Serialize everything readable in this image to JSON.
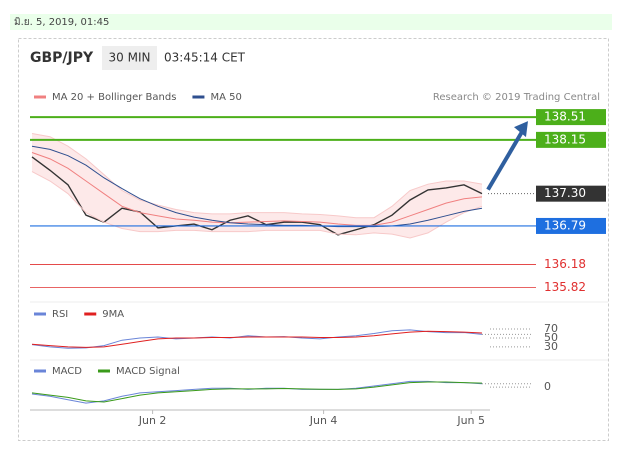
{
  "header": {
    "date": "มิ.ย. 5, 2019, 01:45",
    "pair": "GBP/JPY",
    "timeframe": "30 MIN",
    "time": "03:45:14 CET",
    "credit": "Research © 2019 Trading Central"
  },
  "chart_data": [
    {
      "type": "line",
      "xlim": [
        0,
        25
      ],
      "ylim": [
        135.62,
        138.78
      ],
      "series": [
        {
          "color": "#333333",
          "values": [
            137.88,
            137.67,
            137.44,
            136.96,
            136.85,
            137.07,
            137.01,
            136.76,
            136.79,
            136.82,
            136.73,
            136.88,
            136.95,
            136.81,
            136.85,
            136.85,
            136.81,
            136.65,
            136.73,
            136.81,
            136.96,
            137.2,
            137.36,
            137.39,
            137.44,
            137.3
          ]
        },
        {
          "name": "MA 20 + Bollinger Bands",
          "color": "#f08080",
          "values": [
            137.95,
            137.85,
            137.7,
            137.5,
            137.3,
            137.1,
            137.0,
            136.95,
            136.9,
            136.88,
            136.85,
            136.84,
            136.85,
            136.86,
            136.87,
            136.86,
            136.85,
            136.82,
            136.8,
            136.8,
            136.85,
            136.95,
            137.05,
            137.15,
            137.22,
            137.25
          ]
        },
        {
          "color": "#f7c9c9",
          "values": [
            138.25,
            138.2,
            138.05,
            137.85,
            137.6,
            137.35,
            137.2,
            137.12,
            137.05,
            137.0,
            136.98,
            136.98,
            137.0,
            137.0,
            137.0,
            136.98,
            136.97,
            136.95,
            136.92,
            136.92,
            137.1,
            137.35,
            137.45,
            137.5,
            137.5,
            137.45
          ]
        },
        {
          "color": "#f7c9c9",
          "values": [
            137.65,
            137.5,
            137.3,
            137.0,
            136.85,
            136.75,
            136.7,
            136.7,
            136.72,
            136.72,
            136.7,
            136.7,
            136.7,
            136.72,
            136.72,
            136.72,
            136.72,
            136.66,
            136.65,
            136.68,
            136.66,
            136.6,
            136.68,
            136.85,
            137.0,
            137.1
          ]
        },
        {
          "name": "MA 50",
          "color": "#2f4f8f",
          "values": [
            138.05,
            138.0,
            137.9,
            137.75,
            137.55,
            137.38,
            137.22,
            137.1,
            137.0,
            136.93,
            136.88,
            136.84,
            136.82,
            136.81,
            136.8,
            136.8,
            136.79,
            136.78,
            136.78,
            136.78,
            136.79,
            136.82,
            136.88,
            136.95,
            137.02,
            137.07
          ]
        }
      ],
      "levels": [
        {
          "value": 138.51,
          "color": "#4caf1a",
          "style": "box"
        },
        {
          "value": 138.15,
          "color": "#4caf1a",
          "style": "box"
        },
        {
          "value": 137.3,
          "label": "137.30",
          "color": "#333333",
          "style": "dotted"
        },
        {
          "value": 136.79,
          "color": "#1e6fe0",
          "style": "box"
        },
        {
          "value": 136.18,
          "color": "#e03030",
          "style": "text"
        },
        {
          "value": 135.82,
          "color": "#e03030",
          "style": "text"
        }
      ]
    },
    {
      "type": "line",
      "xlim": [
        0,
        25
      ],
      "ylim": [
        12,
        90
      ],
      "yticks": [
        70,
        50,
        30
      ],
      "series": [
        {
          "name": "RSI",
          "color": "#6a85d8",
          "values": [
            35,
            30,
            27,
            28,
            33,
            45,
            50,
            52,
            48,
            50,
            52,
            50,
            55,
            52,
            53,
            50,
            48,
            52,
            55,
            60,
            66,
            68,
            64,
            62,
            62,
            58
          ]
        },
        {
          "name": "9MA",
          "color": "#e02020",
          "values": [
            36,
            33,
            30,
            29,
            30,
            36,
            42,
            48,
            50,
            50,
            51,
            51,
            52,
            52,
            52,
            52,
            51,
            51,
            52,
            55,
            59,
            63,
            65,
            64,
            63,
            61
          ]
        }
      ]
    },
    {
      "type": "line",
      "xlim": [
        0,
        25
      ],
      "ylim": [
        -0.2,
        0.08
      ],
      "yticks": [
        0
      ],
      "xticks": [
        {
          "value": 6.7,
          "label": "Jun 2"
        },
        {
          "value": 16.2,
          "label": "Jun 4"
        },
        {
          "value": 24.4,
          "label": "Jun 5"
        }
      ],
      "series": [
        {
          "name": "MACD",
          "color": "#6a85d8",
          "values": [
            -0.06,
            -0.08,
            -0.11,
            -0.14,
            -0.12,
            -0.08,
            -0.05,
            -0.04,
            -0.03,
            -0.02,
            -0.01,
            -0.01,
            -0.02,
            -0.01,
            -0.01,
            -0.02,
            -0.02,
            -0.02,
            -0.01,
            0.01,
            0.03,
            0.05,
            0.05,
            0.04,
            0.04,
            0.03
          ]
        },
        {
          "name": "MACD Signal",
          "color": "#3a9a1a",
          "values": [
            -0.05,
            -0.07,
            -0.09,
            -0.12,
            -0.13,
            -0.1,
            -0.07,
            -0.05,
            -0.04,
            -0.03,
            -0.02,
            -0.015,
            -0.015,
            -0.015,
            -0.012,
            -0.015,
            -0.018,
            -0.02,
            -0.015,
            0,
            0.02,
            0.04,
            0.045,
            0.045,
            0.04,
            0.035
          ]
        }
      ]
    }
  ]
}
